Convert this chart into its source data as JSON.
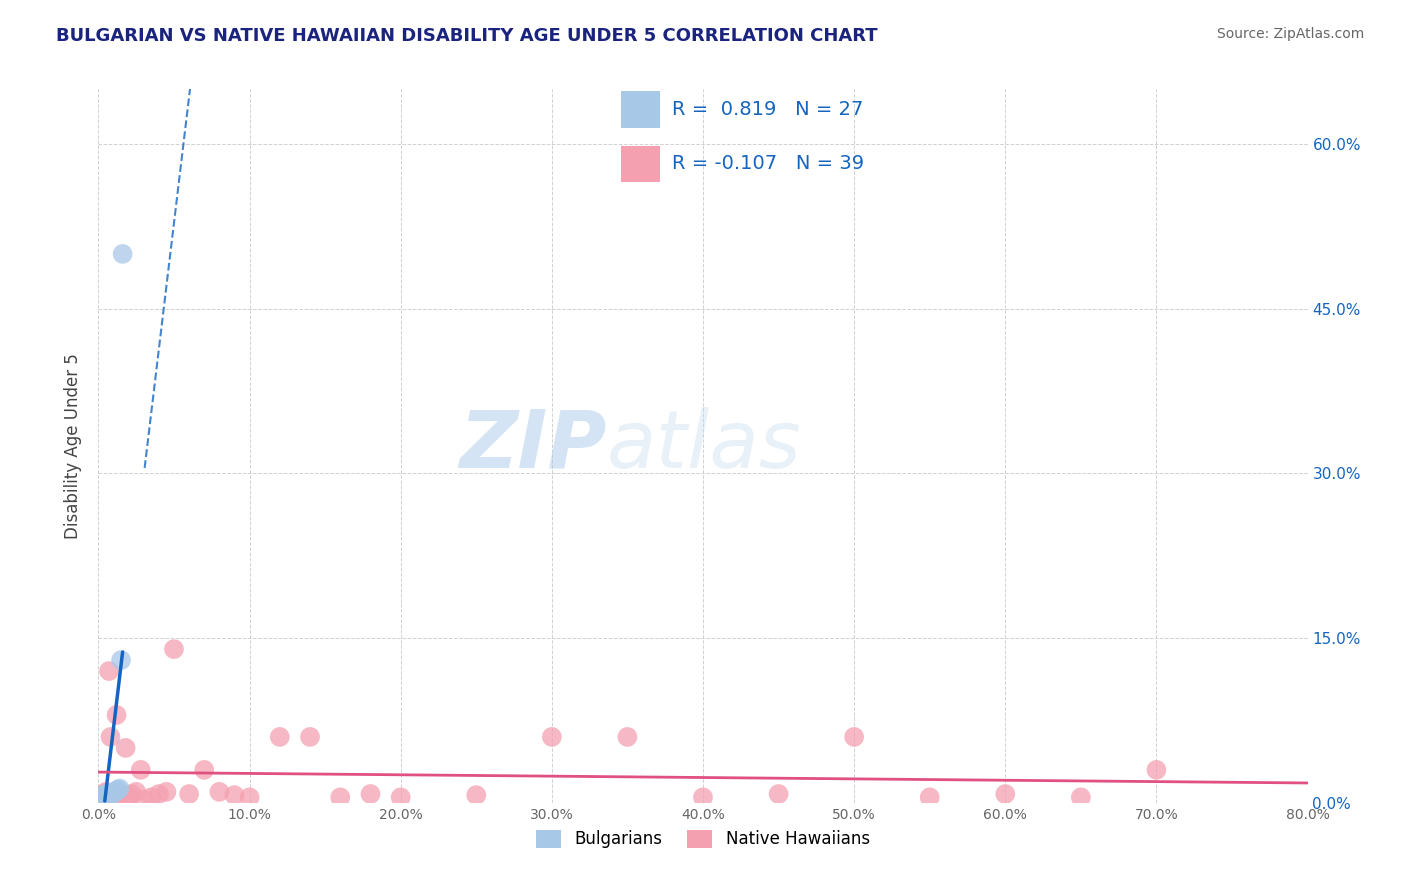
{
  "title": "BULGARIAN VS NATIVE HAWAIIAN DISABILITY AGE UNDER 5 CORRELATION CHART",
  "source": "Source: ZipAtlas.com",
  "ylabel": "Disability Age Under 5",
  "xlim": [
    0.0,
    0.8
  ],
  "ylim": [
    0.0,
    0.65
  ],
  "xticks": [
    0.0,
    0.1,
    0.2,
    0.3,
    0.4,
    0.5,
    0.6,
    0.7,
    0.8
  ],
  "yticks": [
    0.0,
    0.15,
    0.3,
    0.45,
    0.6
  ],
  "xtick_labels": [
    "0.0%",
    "10.0%",
    "20.0%",
    "30.0%",
    "40.0%",
    "50.0%",
    "60.0%",
    "70.0%",
    "80.0%"
  ],
  "right_ytick_labels": [
    "0.0%",
    "15.0%",
    "30.0%",
    "45.0%",
    "60.0%"
  ],
  "bulgarians_x": [
    0.001,
    0.001,
    0.002,
    0.002,
    0.002,
    0.003,
    0.003,
    0.003,
    0.004,
    0.004,
    0.004,
    0.005,
    0.005,
    0.005,
    0.006,
    0.006,
    0.007,
    0.007,
    0.008,
    0.009,
    0.01,
    0.011,
    0.012,
    0.013,
    0.014,
    0.015,
    0.016
  ],
  "bulgarians_y": [
    0.002,
    0.003,
    0.002,
    0.004,
    0.005,
    0.003,
    0.004,
    0.006,
    0.003,
    0.005,
    0.007,
    0.004,
    0.006,
    0.008,
    0.005,
    0.007,
    0.006,
    0.008,
    0.007,
    0.008,
    0.009,
    0.01,
    0.011,
    0.012,
    0.013,
    0.13,
    0.5
  ],
  "native_hawaiians_x": [
    0.001,
    0.002,
    0.004,
    0.005,
    0.007,
    0.008,
    0.01,
    0.012,
    0.015,
    0.018,
    0.02,
    0.022,
    0.025,
    0.028,
    0.03,
    0.035,
    0.04,
    0.045,
    0.05,
    0.06,
    0.07,
    0.08,
    0.09,
    0.1,
    0.12,
    0.14,
    0.16,
    0.18,
    0.2,
    0.25,
    0.3,
    0.35,
    0.4,
    0.45,
    0.5,
    0.55,
    0.6,
    0.65,
    0.7
  ],
  "native_hawaiians_y": [
    0.003,
    0.005,
    0.008,
    0.01,
    0.12,
    0.06,
    0.005,
    0.08,
    0.007,
    0.05,
    0.005,
    0.008,
    0.01,
    0.03,
    0.003,
    0.005,
    0.008,
    0.01,
    0.14,
    0.008,
    0.03,
    0.01,
    0.007,
    0.005,
    0.06,
    0.06,
    0.005,
    0.008,
    0.005,
    0.007,
    0.06,
    0.06,
    0.005,
    0.008,
    0.06,
    0.005,
    0.008,
    0.005,
    0.03
  ],
  "bulgarian_color": "#A8C8E8",
  "native_hawaiian_color": "#F4A0B0",
  "bulgarian_line_color": "#1565C0",
  "native_hawaiian_line_color": "#E05080",
  "R_bulgarian": 0.819,
  "N_bulgarian": 27,
  "R_native": -0.107,
  "N_native": 39,
  "legend_labels": [
    "Bulgarians",
    "Native Hawaiians"
  ],
  "watermark_zip": "ZIP",
  "watermark_atlas": "atlas",
  "title_color": "#1a237e",
  "source_color": "#666666",
  "axis_label_color": "#444444",
  "tick_color": "#666666",
  "stat_color": "#1565C0",
  "grid_color": "#CCCCCC",
  "bg_color": "#FFFFFF"
}
